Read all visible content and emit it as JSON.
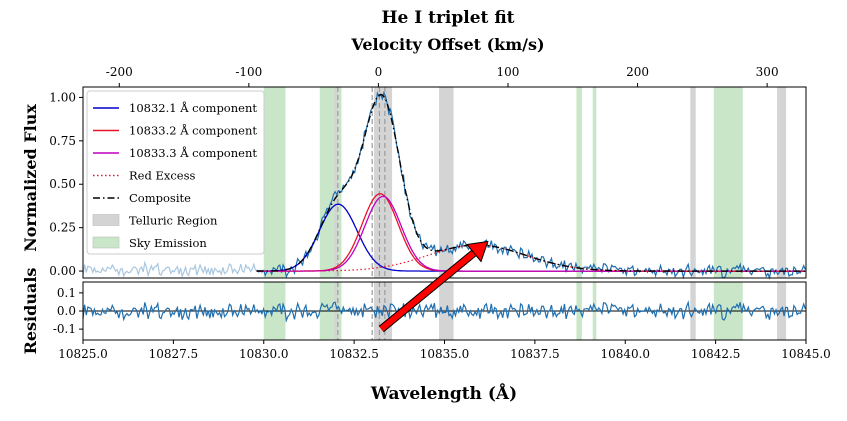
{
  "chart_data": {
    "type": "line",
    "title": "He I triplet fit",
    "top_axis_label": "Velocity Offset (km/s)",
    "xlabel": "Wavelength (Å)",
    "ylabel_top": "Normalized Flux",
    "ylabel_bottom": "Residuals",
    "xlim": [
      10825.0,
      10845.0
    ],
    "ylim_top": [
      -0.04,
      1.06
    ],
    "ylim_bottom": [
      -0.16,
      0.16
    ],
    "velocity_lim": [
      -228,
      330
    ],
    "x_ticks": [
      "10825.0",
      "10827.5",
      "10830.0",
      "10832.5",
      "10835.0",
      "10837.5",
      "10840.0",
      "10842.5",
      "10845.0"
    ],
    "x_tick_values": [
      10825.0,
      10827.5,
      10830.0,
      10832.5,
      10835.0,
      10837.5,
      10840.0,
      10842.5,
      10845.0
    ],
    "top_ticks": [
      "-200",
      "-100",
      "0",
      "100",
      "200",
      "300"
    ],
    "top_tick_values": [
      -200,
      -100,
      0,
      100,
      200,
      300
    ],
    "y_ticks_top": [
      "0.00",
      "0.25",
      "0.50",
      "0.75",
      "1.00"
    ],
    "y_tick_values_top": [
      0,
      0.25,
      0.5,
      0.75,
      1.0
    ],
    "y_ticks_bottom": [
      "-0.1",
      "0.0",
      "0.1"
    ],
    "y_tick_values_bottom": [
      -0.1,
      0.0,
      0.1
    ],
    "legend_position": "upper-left",
    "legend": [
      {
        "label": "10832.1 Å component",
        "color": "#0000cc",
        "style": "solid"
      },
      {
        "label": "10833.2 Å component",
        "color": "#e8132a",
        "style": "solid"
      },
      {
        "label": "10833.3 Å component",
        "color": "#bf00bf",
        "style": "solid"
      },
      {
        "label": "Red Excess",
        "color": "#e8132a",
        "style": "dotted"
      },
      {
        "label": "Composite",
        "color": "#000000",
        "style": "dashdot"
      },
      {
        "label": "Telluric Region",
        "color": "#d4d4d4",
        "style": "patch"
      },
      {
        "label": "Sky Emission",
        "color": "#c9e6c9",
        "style": "patch"
      }
    ],
    "components": [
      {
        "name": "10832.1 Å component",
        "center": 10832.06,
        "amplitude": 0.385,
        "sigma": 0.52,
        "color": "#0000cc"
      },
      {
        "name": "10833.2 Å component",
        "center": 10833.22,
        "amplitude": 0.445,
        "sigma": 0.5,
        "color": "#e8132a"
      },
      {
        "name": "10833.3 Å component",
        "center": 10833.3,
        "amplitude": 0.43,
        "sigma": 0.5,
        "color": "#bf00bf"
      },
      {
        "name": "Red Excess",
        "center": 10835.9,
        "amplitude": 0.15,
        "sigma": 1.35,
        "color": "#e8132a"
      }
    ],
    "telluric_regions": [
      [
        10831.95,
        10832.05
      ],
      [
        10833.05,
        10833.55
      ],
      [
        10834.85,
        10835.25
      ],
      [
        10841.8,
        10841.95
      ],
      [
        10844.2,
        10844.45
      ]
    ],
    "sky_regions": [
      [
        10830.0,
        10830.6
      ],
      [
        10831.55,
        10832.15
      ],
      [
        10838.65,
        10838.8
      ],
      [
        10839.1,
        10839.2
      ],
      [
        10842.45,
        10843.25
      ]
    ],
    "dashed_lines_x": [
      10832.05,
      10833.0,
      10833.2,
      10833.35
    ],
    "arrow": {
      "from": [
        10833.25,
        -0.1
      ],
      "to": [
        10836.2,
        0.17
      ],
      "color": "#ff0000"
    },
    "colors": {
      "data": "#1f6fb0",
      "data_faded": "#a9c7e0",
      "sky": "#c9e6c9",
      "telluric": "#d4d4d4"
    }
  }
}
